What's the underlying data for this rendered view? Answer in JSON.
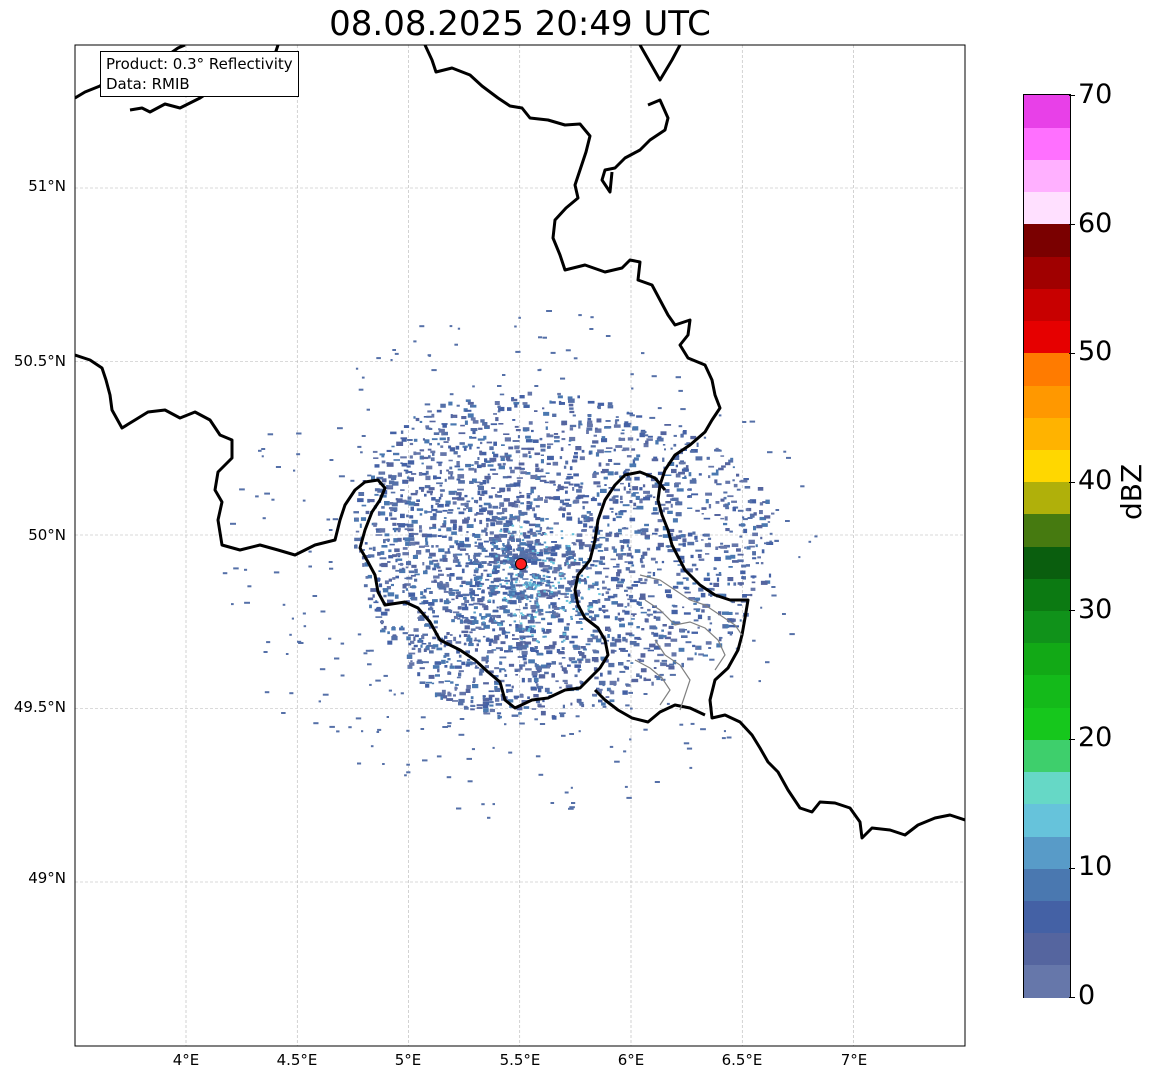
{
  "title": "08.08.2025 20:49 UTC",
  "info": {
    "product": "Product: 0.3° Reflectivity",
    "data": "Data: RMIB"
  },
  "lat_labels": [
    "51°N",
    "50.5°N",
    "50°N",
    "49.5°N",
    "49°N"
  ],
  "lon_labels": [
    "4°E",
    "4.5°E",
    "5°E",
    "5.5°E",
    "6°E",
    "6.5°E",
    "7°E"
  ],
  "colorbar": {
    "label": "dBZ",
    "ticks": [
      "0",
      "10",
      "20",
      "30",
      "40",
      "50",
      "60",
      "70"
    ],
    "colors": [
      "#6677aa",
      "#55659f",
      "#4461a5",
      "#4a78b0",
      "#589bc8",
      "#66c3db",
      "#66d8c6",
      "#3ecf6c",
      "#16c71c",
      "#14ba1a",
      "#12a916",
      "#10921a",
      "#0c7a12",
      "#0a5e0e",
      "#467a10",
      "#b0b00a",
      "#ffd700",
      "#ffb300",
      "#ff9800",
      "#ff7b00",
      "#e60000",
      "#c80000",
      "#a00000",
      "#7a0000",
      "#ffe0ff",
      "#ffb0ff",
      "#ff70ff",
      "#e840e8"
    ]
  },
  "radar_site": {
    "lon": 5.5,
    "lat": 49.914
  },
  "map_extent": {
    "lon": [
      3.5,
      7.5
    ],
    "lat": [
      48.5,
      51.4
    ]
  }
}
